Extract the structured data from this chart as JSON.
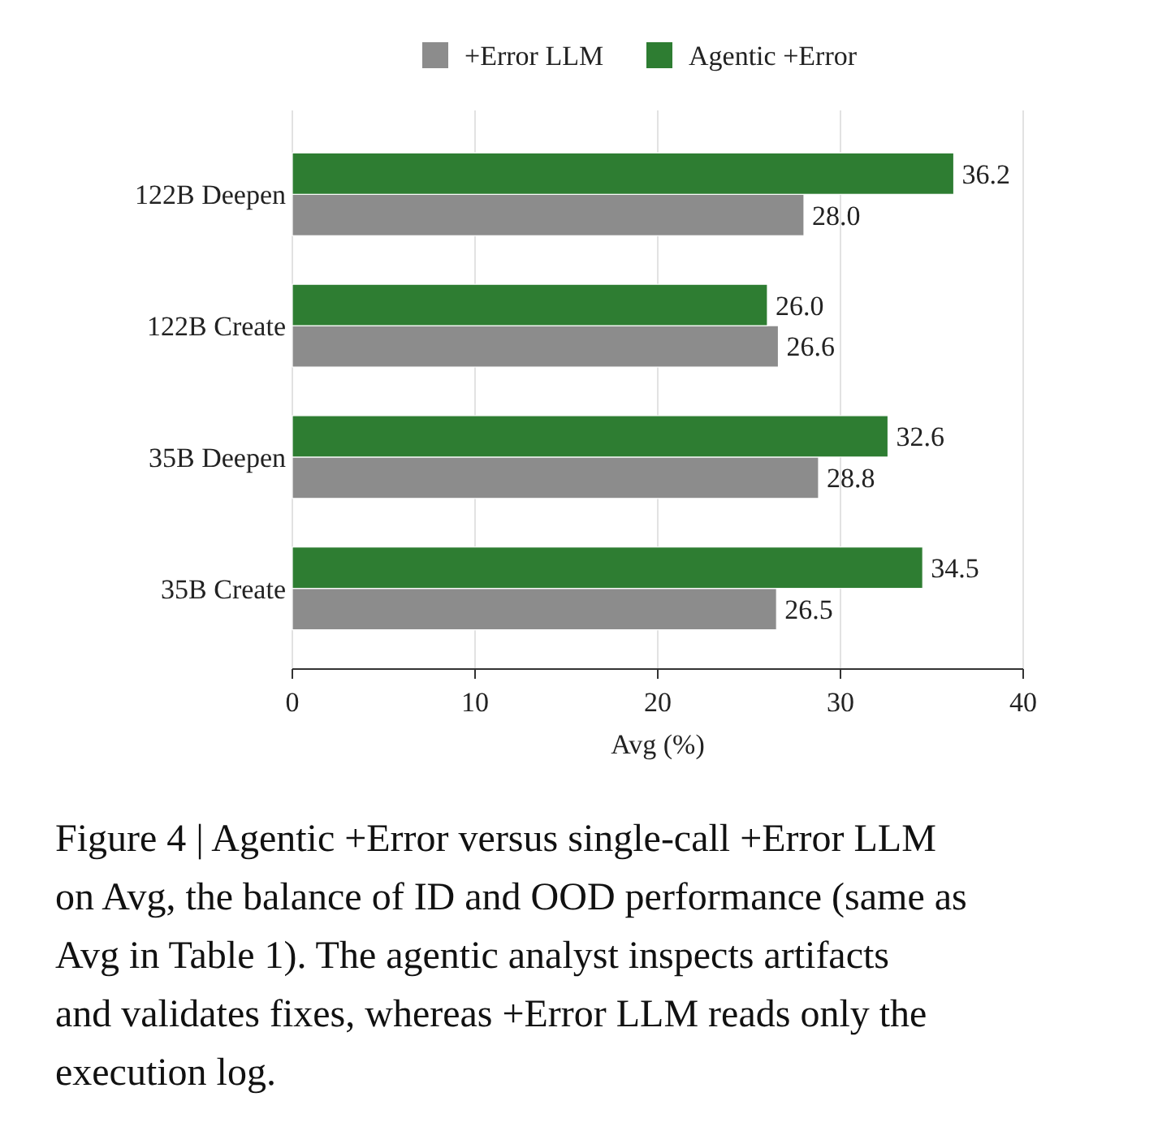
{
  "chart_data": {
    "type": "bar",
    "orientation": "horizontal",
    "xlabel": "Avg (%)",
    "categories": [
      "122B Deepen",
      "122B Create",
      "35B Deepen",
      "35B Create"
    ],
    "series": [
      {
        "name": "+Error LLM",
        "color": "#8c8c8c",
        "values": [
          28.0,
          26.6,
          28.8,
          26.5
        ],
        "value_labels": [
          "28.0",
          "26.6",
          "28.8",
          "26.5"
        ]
      },
      {
        "name": "Agentic +Error",
        "color": "#2e7d32",
        "values": [
          36.2,
          26.0,
          32.6,
          34.5
        ],
        "value_labels": [
          "36.2",
          "26.0",
          "32.6",
          "34.5"
        ]
      }
    ],
    "xlim": [
      0,
      40
    ],
    "xticks": [
      0,
      10,
      20,
      30,
      40
    ],
    "grid": "x",
    "legend": "top",
    "annotations": [
      "Figure 4 | Agentic +Error versus single-call +Error LLM on Avg, the balance of ID and OOD performance (same as Avg in Table 1). The agentic analyst inspects artifacts and validates fixes, whereas +Error LLM reads only the execution log."
    ]
  }
}
